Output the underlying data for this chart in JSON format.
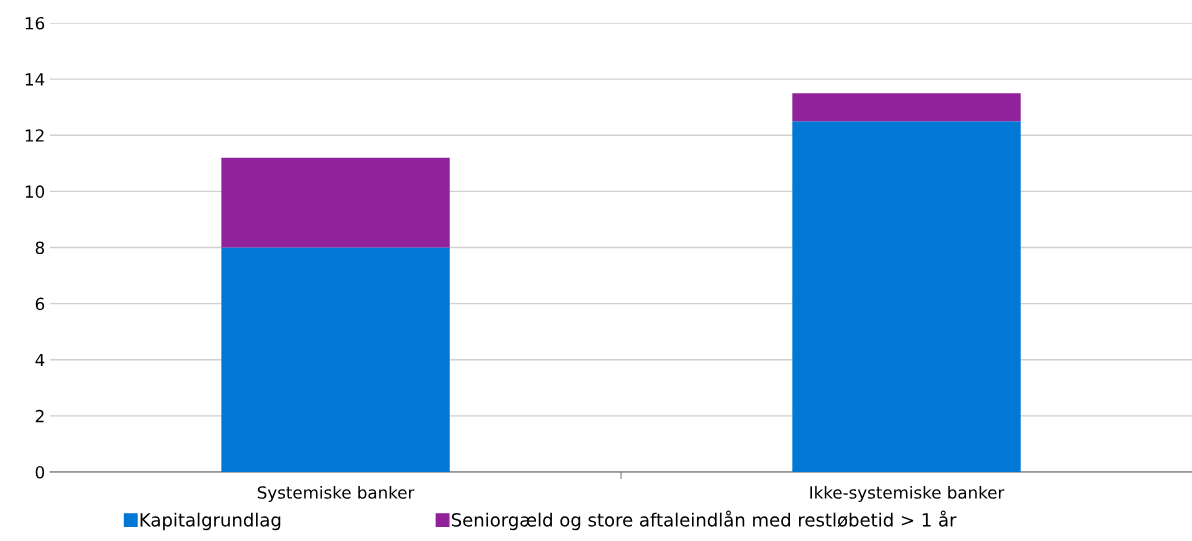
{
  "chart_data": {
    "type": "bar",
    "stacked": true,
    "categories": [
      "Systemiske banker",
      "Ikke-systemiske banker"
    ],
    "series": [
      {
        "name": "Kapitalgrundlag",
        "color": "#0078d4",
        "values": [
          8,
          12.5
        ]
      },
      {
        "name": "Seniorgæld og store aftaleindlån med restløbetid > 1 år",
        "color": "#91229b",
        "values": [
          3.2,
          1.0
        ]
      }
    ],
    "ylim": [
      0,
      16
    ],
    "yticks": [
      0,
      2,
      4,
      6,
      8,
      10,
      12,
      14,
      16
    ],
    "grid": "y",
    "legend": "bottom"
  }
}
